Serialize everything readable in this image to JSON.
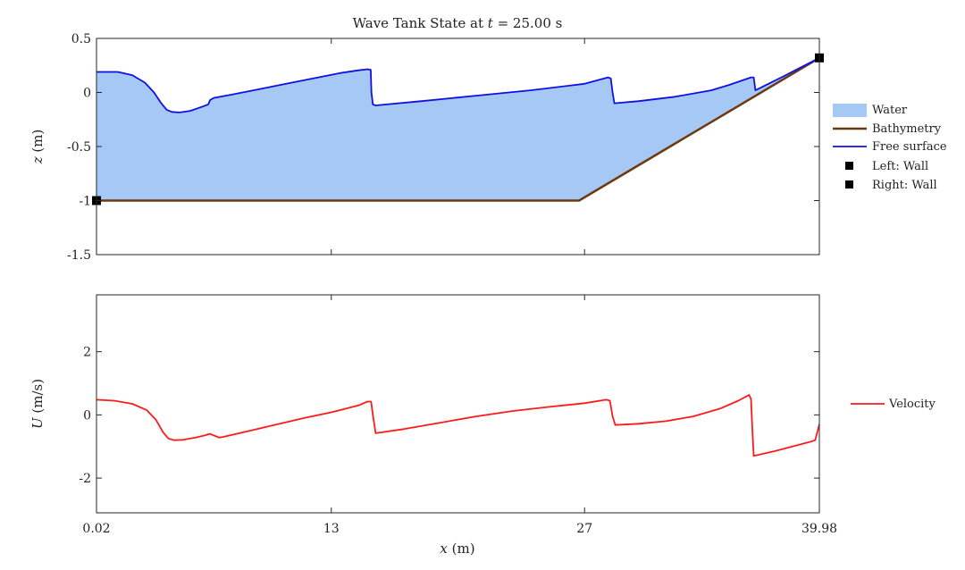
{
  "title": "Wave Tank State at t = 25.00 s",
  "title_parts": {
    "prefix": "Wave Tank State at ",
    "var": "t",
    "suffix": " = 25.00 s"
  },
  "xlabel": {
    "var": "x",
    "unit": " (m)"
  },
  "x_ticks": [
    0.02,
    13,
    27,
    39.98
  ],
  "x_tick_labels": [
    "0.02",
    "13",
    "27",
    "39.98"
  ],
  "colors": {
    "water": "#a6c8f5",
    "bathymetry": "#6b3a10",
    "free_surface": "#1010e0",
    "velocity": "#ff1a1a",
    "marker": "#000000"
  },
  "chart_data": [
    {
      "type": "area",
      "ylabel": {
        "var": "z",
        "unit": " (m)"
      },
      "xlim": [
        0.02,
        39.98
      ],
      "ylim": [
        -1.5,
        0.5
      ],
      "y_ticks": [
        -1.5,
        -1,
        -0.5,
        0,
        0.5
      ],
      "y_tick_labels": [
        "-1.5",
        "-1",
        "-0.5",
        "0",
        "0.5"
      ],
      "legend_position": "outside-right",
      "legend": [
        {
          "label": "Water",
          "kind": "patch",
          "color": "#a6c8f5"
        },
        {
          "label": "Bathymetry",
          "kind": "line",
          "color": "#6b3a10"
        },
        {
          "label": "Free surface",
          "kind": "line",
          "color": "#1010e0"
        },
        {
          "label": "Left: Wall",
          "kind": "marker",
          "color": "#000000"
        },
        {
          "label": "Right: Wall",
          "kind": "marker",
          "color": "#000000"
        }
      ],
      "series": [
        {
          "name": "Bathymetry",
          "points": [
            [
              0.02,
              -1.0
            ],
            [
              26.7,
              -1.0
            ],
            [
              39.98,
              0.32
            ]
          ]
        },
        {
          "name": "Free surface",
          "points": [
            [
              0.02,
              0.19
            ],
            [
              1.2,
              0.19
            ],
            [
              2.0,
              0.16
            ],
            [
              2.7,
              0.09
            ],
            [
              3.2,
              0.0
            ],
            [
              3.6,
              -0.1
            ],
            [
              3.9,
              -0.16
            ],
            [
              4.2,
              -0.18
            ],
            [
              4.6,
              -0.185
            ],
            [
              5.2,
              -0.17
            ],
            [
              5.9,
              -0.13
            ],
            [
              6.2,
              -0.11
            ],
            [
              6.3,
              -0.07
            ],
            [
              6.5,
              -0.05
            ],
            [
              7.5,
              -0.02
            ],
            [
              9.0,
              0.03
            ],
            [
              10.5,
              0.08
            ],
            [
              12.0,
              0.13
            ],
            [
              13.5,
              0.18
            ],
            [
              14.5,
              0.205
            ],
            [
              15.0,
              0.215
            ],
            [
              15.18,
              0.21
            ],
            [
              15.22,
              0.0
            ],
            [
              15.3,
              -0.11
            ],
            [
              15.45,
              -0.12
            ],
            [
              18.0,
              -0.08
            ],
            [
              21.0,
              -0.03
            ],
            [
              24.0,
              0.02
            ],
            [
              27.0,
              0.08
            ],
            [
              28.3,
              0.14
            ],
            [
              28.45,
              0.13
            ],
            [
              28.55,
              0.0
            ],
            [
              28.65,
              -0.1
            ],
            [
              30.0,
              -0.08
            ],
            [
              32.0,
              -0.04
            ],
            [
              34.0,
              0.02
            ],
            [
              35.0,
              0.07
            ],
            [
              36.2,
              0.14
            ],
            [
              36.35,
              0.14
            ],
            [
              36.45,
              0.02
            ],
            [
              38.0,
              0.15
            ],
            [
              39.98,
              0.32
            ]
          ]
        },
        {
          "name": "Left: Wall",
          "points": [
            [
              0.02,
              -1.0
            ]
          ]
        },
        {
          "name": "Right: Wall",
          "points": [
            [
              39.98,
              0.32
            ]
          ]
        }
      ]
    },
    {
      "type": "line",
      "ylabel": {
        "var": "U",
        "unit": " (m/s)"
      },
      "xlim": [
        0.02,
        39.98
      ],
      "ylim": [
        -3.1,
        3.8
      ],
      "y_ticks": [
        -2,
        0,
        2
      ],
      "y_tick_labels": [
        "-2",
        "0",
        "2"
      ],
      "legend_position": "outside-right",
      "legend": [
        {
          "label": "Velocity",
          "kind": "line",
          "color": "#ff1a1a"
        }
      ],
      "series": [
        {
          "name": "Velocity",
          "points": [
            [
              0.02,
              0.48
            ],
            [
              1.0,
              0.45
            ],
            [
              2.0,
              0.35
            ],
            [
              2.8,
              0.15
            ],
            [
              3.3,
              -0.15
            ],
            [
              3.7,
              -0.55
            ],
            [
              4.0,
              -0.75
            ],
            [
              4.3,
              -0.8
            ],
            [
              4.8,
              -0.79
            ],
            [
              5.5,
              -0.72
            ],
            [
              6.0,
              -0.65
            ],
            [
              6.3,
              -0.6
            ],
            [
              6.5,
              -0.65
            ],
            [
              6.8,
              -0.72
            ],
            [
              7.0,
              -0.7
            ],
            [
              8.5,
              -0.5
            ],
            [
              10.0,
              -0.3
            ],
            [
              11.5,
              -0.1
            ],
            [
              13.0,
              0.08
            ],
            [
              14.5,
              0.3
            ],
            [
              15.0,
              0.42
            ],
            [
              15.2,
              0.42
            ],
            [
              15.3,
              0.0
            ],
            [
              15.45,
              -0.58
            ],
            [
              17.0,
              -0.45
            ],
            [
              19.0,
              -0.25
            ],
            [
              21.0,
              -0.05
            ],
            [
              23.0,
              0.12
            ],
            [
              25.0,
              0.25
            ],
            [
              27.0,
              0.37
            ],
            [
              28.2,
              0.48
            ],
            [
              28.4,
              0.45
            ],
            [
              28.55,
              -0.05
            ],
            [
              28.7,
              -0.32
            ],
            [
              30.0,
              -0.28
            ],
            [
              31.5,
              -0.2
            ],
            [
              33.0,
              -0.05
            ],
            [
              34.5,
              0.2
            ],
            [
              35.5,
              0.45
            ],
            [
              36.1,
              0.63
            ],
            [
              36.2,
              0.5
            ],
            [
              36.28,
              -0.5
            ],
            [
              36.35,
              -1.3
            ],
            [
              37.5,
              -1.15
            ],
            [
              38.5,
              -1.0
            ],
            [
              39.5,
              -0.85
            ],
            [
              39.75,
              -0.8
            ],
            [
              39.98,
              -0.3
            ]
          ]
        }
      ]
    }
  ]
}
